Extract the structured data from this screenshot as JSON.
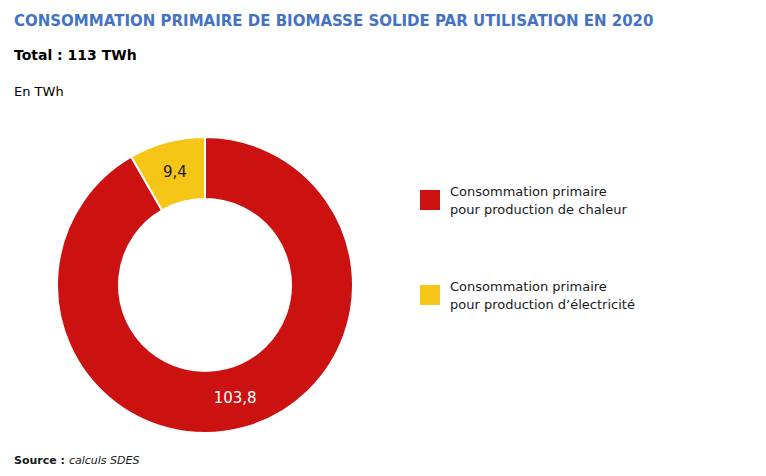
{
  "chart_data": {
    "type": "donut",
    "title": "CONSOMMATION PRIMAIRE DE BIOMASSE SOLIDE PAR UTILISATION EN 2020",
    "subtitle": "Total : 113 TWh",
    "annotations": [
      "En TWh",
      "Source :",
      "calculs SDES"
    ],
    "categories": [
      "Consommation primaire\npour production de chaleur",
      "Consommation primaire\npour production d’électricité"
    ],
    "values": [
      103.8,
      9.4
    ],
    "value_labels": [
      "103,8",
      "9,4"
    ],
    "colors": [
      "#cc1111",
      "#f5c518"
    ],
    "data_labels": true,
    "legend": "right"
  }
}
